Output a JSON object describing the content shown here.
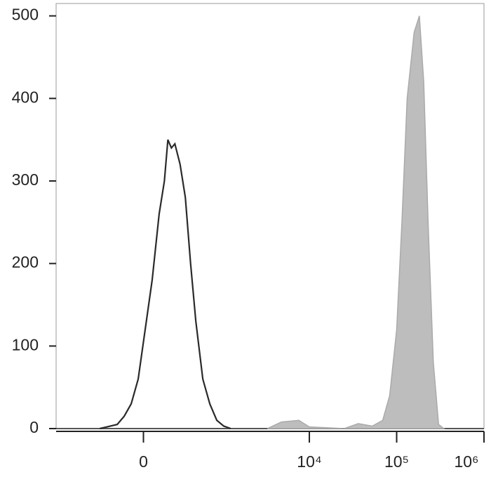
{
  "chart_data": {
    "type": "line",
    "xlim": [
      1.1,
      6
    ],
    "ylim": [
      0,
      515
    ],
    "xticks": [
      {
        "value": 2.1,
        "label": "0"
      },
      {
        "value": 4,
        "label": "10⁴"
      },
      {
        "value": 5,
        "label": "10⁵"
      },
      {
        "value": 6,
        "label": "10⁶"
      }
    ],
    "yticks": [
      0,
      100,
      200,
      300,
      400,
      500
    ],
    "series": [
      {
        "color": "#bdbdbd",
        "filled": true,
        "x": [
          3.52,
          3.68,
          3.88,
          4.0,
          4.4,
          4.56,
          4.72,
          4.84,
          4.92,
          5.0,
          5.06,
          5.12,
          5.2,
          5.26,
          5.31,
          5.36,
          5.42,
          5.48,
          5.54
        ],
        "values": [
          0,
          8,
          10,
          2,
          0,
          6,
          3,
          10,
          40,
          120,
          250,
          400,
          480,
          500,
          420,
          250,
          80,
          5,
          0
        ]
      },
      {
        "color": "#2a2a2a",
        "filled": false,
        "x": [
          1.6,
          1.68,
          1.8,
          1.88,
          1.96,
          2.04,
          2.12,
          2.2,
          2.28,
          2.34,
          2.38,
          2.42,
          2.46,
          2.52,
          2.58,
          2.64,
          2.7,
          2.78,
          2.86,
          2.94,
          3.02,
          3.1
        ],
        "values": [
          0,
          2,
          5,
          15,
          30,
          60,
          120,
          180,
          260,
          300,
          350,
          340,
          345,
          320,
          280,
          200,
          130,
          60,
          30,
          10,
          3,
          0
        ]
      }
    ]
  }
}
